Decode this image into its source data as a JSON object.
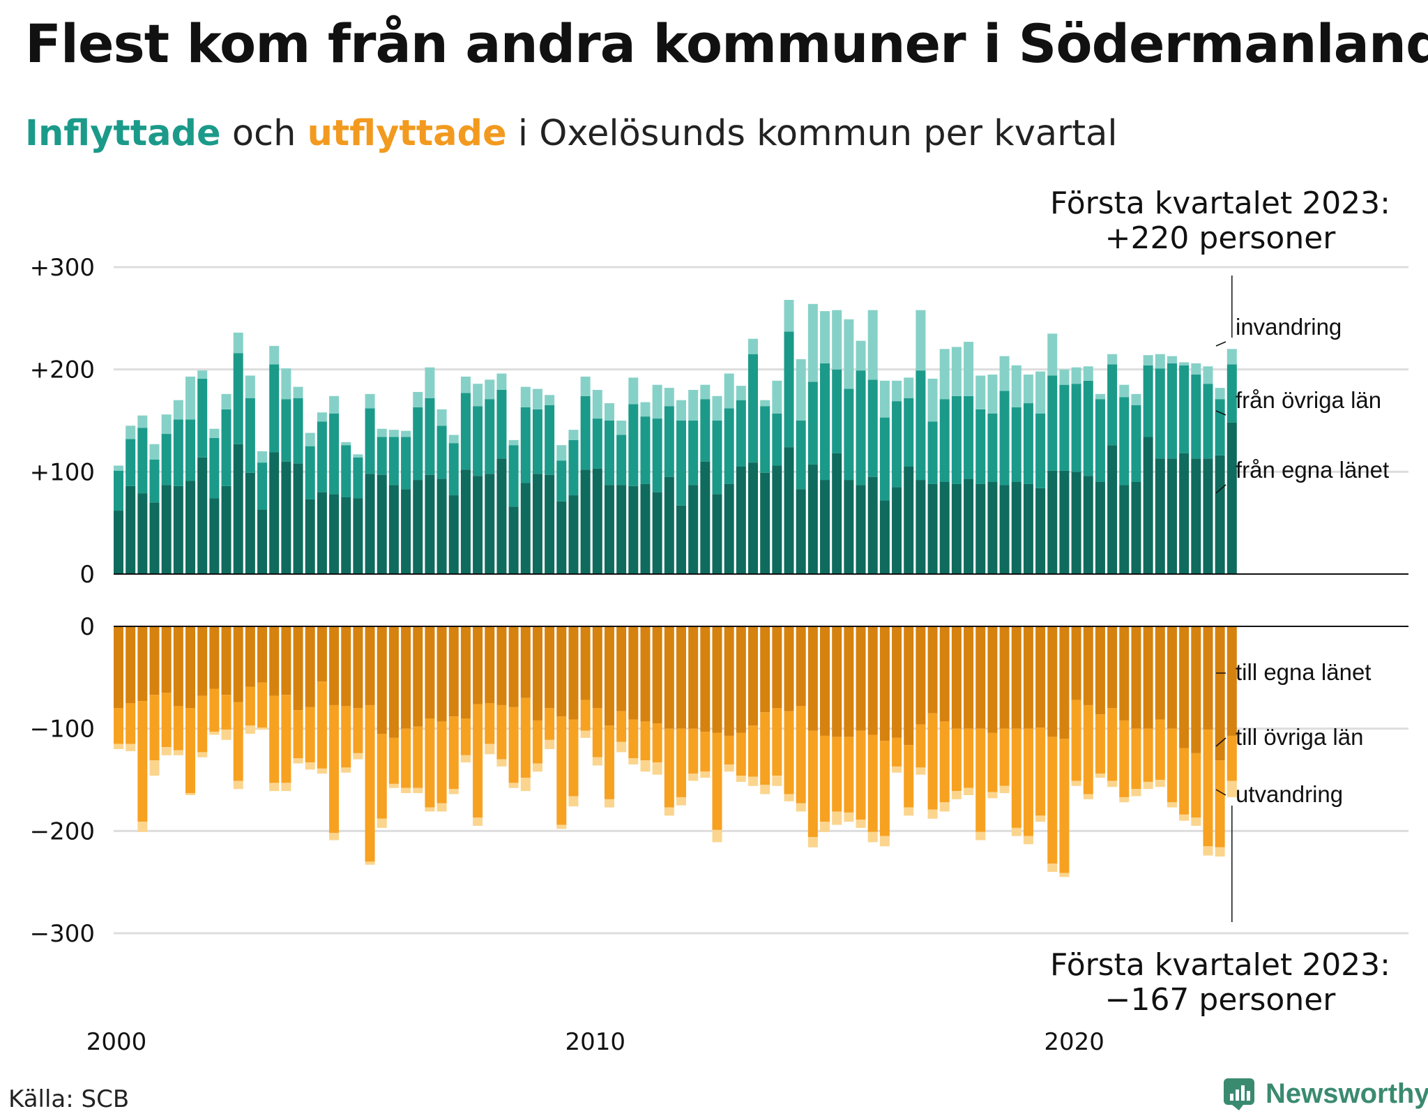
{
  "title": "Flest kom från andra kommuner i Södermanland",
  "subtitle": {
    "inflyttade": "Inflyttade",
    "och": "och",
    "utflyttade": "utflyttade",
    "rest": "i Oxelösunds kommun per kvartal"
  },
  "colors": {
    "in_own": "#0f6b5d",
    "in_other": "#1b9a8a",
    "in_immig": "#86d1c7",
    "out_own": "#d6820e",
    "out_other": "#f7a121",
    "out_emig": "#fbd58e",
    "grid": "#dddddd",
    "axis": "#111111"
  },
  "annotations": {
    "top_line1": "Första kvartalet 2023:",
    "top_line2": "+220 personer",
    "bottom_line1": "Första kvartalet 2023:",
    "bottom_line2": "−167 personer"
  },
  "source": "Källa: SCB",
  "brand": "Newsworthy",
  "brand_icon": "newsworthy-logo-icon",
  "chart_data": {
    "type": "bar",
    "stacked": true,
    "x_start": "2000 Q1",
    "x_end": "2023 Q1",
    "xticks": [
      "2000",
      "2010",
      "2020"
    ],
    "inflyttade": {
      "yticks": [
        "+300",
        "+200",
        "+100",
        "0"
      ],
      "ylim": [
        0,
        300
      ],
      "series": [
        {
          "name": "från egna länet",
          "values": [
            62,
            86,
            79,
            70,
            87,
            86,
            91,
            114,
            74,
            86,
            127,
            99,
            63,
            119,
            110,
            108,
            73,
            80,
            78,
            75,
            74,
            98,
            97,
            87,
            83,
            92,
            97,
            93,
            77,
            102,
            96,
            98,
            113,
            66,
            89,
            98,
            97,
            71,
            77,
            102,
            103,
            87,
            87,
            86,
            88,
            80,
            95,
            67,
            87,
            110,
            78,
            88,
            105,
            109,
            99,
            106,
            124,
            83,
            107,
            92,
            118,
            92,
            87,
            95,
            72,
            85,
            105,
            92,
            88,
            90,
            88,
            93,
            88,
            90,
            87,
            90,
            88,
            84,
            101,
            101,
            100,
            96,
            90,
            126,
            87,
            90,
            134,
            113,
            113,
            118,
            113,
            113,
            116,
            148
          ]
        },
        {
          "name": "från övriga län",
          "values": [
            39,
            46,
            64,
            42,
            50,
            65,
            60,
            77,
            59,
            75,
            89,
            73,
            46,
            86,
            61,
            64,
            52,
            69,
            79,
            51,
            40,
            64,
            37,
            47,
            51,
            71,
            75,
            52,
            51,
            75,
            68,
            73,
            67,
            60,
            74,
            63,
            68,
            40,
            54,
            72,
            49,
            63,
            49,
            80,
            66,
            72,
            69,
            83,
            63,
            61,
            72,
            74,
            65,
            106,
            65,
            51,
            113,
            67,
            81,
            114,
            82,
            89,
            112,
            95,
            81,
            84,
            67,
            107,
            61,
            81,
            86,
            81,
            73,
            67,
            92,
            73,
            79,
            73,
            93,
            84,
            86,
            93,
            81,
            79,
            86,
            75,
            70,
            88,
            93,
            86,
            82,
            73,
            55,
            57
          ]
        },
        {
          "name": "invandring",
          "values": [
            5,
            13,
            12,
            15,
            19,
            19,
            42,
            8,
            9,
            15,
            20,
            22,
            11,
            18,
            30,
            11,
            13,
            9,
            17,
            3,
            3,
            14,
            8,
            7,
            6,
            15,
            30,
            16,
            8,
            16,
            22,
            19,
            16,
            5,
            20,
            20,
            10,
            15,
            10,
            19,
            28,
            17,
            14,
            26,
            14,
            33,
            18,
            20,
            30,
            14,
            24,
            34,
            14,
            15,
            6,
            32,
            31,
            60,
            76,
            51,
            58,
            68,
            29,
            68,
            36,
            20,
            20,
            59,
            42,
            49,
            48,
            53,
            33,
            38,
            34,
            41,
            28,
            41,
            41,
            15,
            16,
            14,
            5,
            10,
            12,
            11,
            10,
            14,
            7,
            3,
            11,
            17,
            11,
            15
          ]
        }
      ]
    },
    "utflyttade": {
      "yticks": [
        "0",
        "−100",
        "−200",
        "−300"
      ],
      "ylim": [
        -300,
        0
      ],
      "series": [
        {
          "name": "till egna länet",
          "values": [
            -80,
            -75,
            -73,
            -67,
            -65,
            -78,
            -80,
            -68,
            -61,
            -67,
            -74,
            -59,
            -55,
            -68,
            -67,
            -82,
            -79,
            -54,
            -77,
            -78,
            -80,
            -77,
            -105,
            -109,
            -100,
            -98,
            -90,
            -93,
            -88,
            -90,
            -76,
            -75,
            -77,
            -79,
            -70,
            -92,
            -80,
            -88,
            -91,
            -72,
            -80,
            -97,
            -83,
            -91,
            -93,
            -95,
            -100,
            -100,
            -100,
            -103,
            -104,
            -107,
            -104,
            -97,
            -84,
            -80,
            -83,
            -78,
            -102,
            -107,
            -108,
            -108,
            -102,
            -106,
            -112,
            -109,
            -116,
            -96,
            -85,
            -93,
            -100,
            -100,
            -100,
            -104,
            -100,
            -100,
            -100,
            -99,
            -108,
            -110,
            -72,
            -77,
            -86,
            -80,
            -92,
            -100,
            -100,
            -91,
            -100,
            -119,
            -124,
            -101,
            -131,
            -107
          ]
        },
        {
          "name": "till övriga län",
          "values": [
            -35,
            -40,
            -118,
            -64,
            -53,
            -43,
            -83,
            -55,
            -42,
            -34,
            -77,
            -38,
            -44,
            -85,
            -86,
            -47,
            -54,
            -85,
            -125,
            -60,
            -44,
            -153,
            -83,
            -45,
            -58,
            -60,
            -87,
            -80,
            -71,
            -36,
            -111,
            -40,
            -53,
            -74,
            -78,
            -42,
            -31,
            -106,
            -75,
            -30,
            -48,
            -72,
            -30,
            -38,
            -38,
            -38,
            -77,
            -67,
            -44,
            -39,
            -95,
            -28,
            -42,
            -50,
            -71,
            -66,
            -81,
            -95,
            -104,
            -84,
            -73,
            -74,
            -87,
            -95,
            -93,
            -28,
            -61,
            -42,
            -94,
            -79,
            -61,
            -58,
            -101,
            -58,
            -56,
            -97,
            -105,
            -86,
            -124,
            -131,
            -79,
            -87,
            -58,
            -71,
            -75,
            -59,
            -52,
            -59,
            -72,
            -65,
            -63,
            -114,
            -85,
            -44
          ]
        },
        {
          "name": "utvandring",
          "values": [
            -5,
            -7,
            -10,
            -15,
            -8,
            -5,
            -2,
            -5,
            -3,
            -10,
            -8,
            -8,
            -2,
            -8,
            -8,
            -5,
            -7,
            -5,
            -7,
            -5,
            -6,
            -3,
            -9,
            -4,
            -5,
            -5,
            -4,
            -8,
            -5,
            -7,
            -8,
            -10,
            -7,
            -5,
            -13,
            -8,
            -9,
            -4,
            -10,
            -7,
            -8,
            -8,
            -10,
            -6,
            -11,
            -12,
            -8,
            -8,
            -7,
            -6,
            -12,
            -7,
            -6,
            -9,
            -9,
            -10,
            -7,
            -8,
            -10,
            -10,
            -13,
            -9,
            -8,
            -10,
            -10,
            -6,
            -8,
            -7,
            -9,
            -9,
            -8,
            -7,
            -8,
            -6,
            -7,
            -8,
            -8,
            -6,
            -8,
            -4,
            -5,
            -5,
            -4,
            -6,
            -5,
            -7,
            -7,
            -7,
            -5,
            -6,
            -8,
            -9,
            -9,
            -16
          ]
        }
      ]
    },
    "labels_in": [
      "invandring",
      "från övriga län",
      "från egna länet"
    ],
    "labels_out": [
      "till egna länet",
      "till övriga län",
      "utvandring"
    ]
  }
}
